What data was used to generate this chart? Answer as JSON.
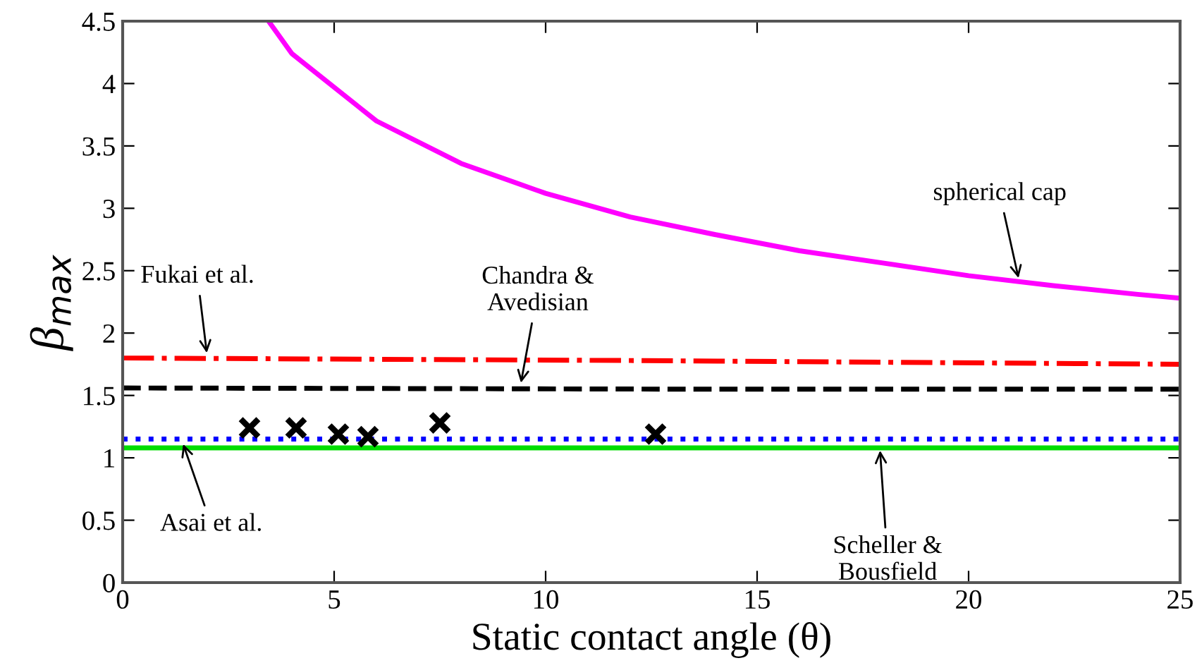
{
  "chart_data": {
    "type": "line",
    "xlabel": "Static contact angle (θ)",
    "ylabel": "β$_{max}$",
    "xlim": [
      0,
      25
    ],
    "ylim": [
      0,
      4.5
    ],
    "xticks": [
      0,
      5,
      10,
      15,
      20,
      25
    ],
    "yticks": [
      0,
      0.5,
      1,
      1.5,
      2,
      2.5,
      3,
      3.5,
      4,
      4.5
    ],
    "grid": false,
    "legend": false,
    "series": [
      {
        "color": "#ff00ff",
        "line_style": "solid",
        "marker": "none",
        "x": [
          3.45,
          4,
          6,
          8,
          10,
          12,
          14,
          16,
          18,
          20,
          22,
          24,
          25
        ],
        "values": [
          4.5,
          4.24,
          3.7,
          3.36,
          3.12,
          2.93,
          2.79,
          2.66,
          2.56,
          2.46,
          2.38,
          2.31,
          2.28
        ]
      },
      {
        "color": "#ff0000",
        "line_style": "dashdot",
        "marker": "none",
        "x": [
          0,
          12,
          25
        ],
        "values": [
          1.8,
          1.78,
          1.75
        ]
      },
      {
        "color": "#000000",
        "line_style": "dashed",
        "marker": "none",
        "x": [
          0,
          14,
          25
        ],
        "values": [
          1.56,
          1.55,
          1.55
        ]
      },
      {
        "color": "#0000ff",
        "line_style": "dotted",
        "marker": "none",
        "x": [
          0,
          25
        ],
        "values": [
          1.15,
          1.15
        ]
      },
      {
        "color": "#00dd00",
        "line_style": "solid",
        "marker": "none",
        "x": [
          0,
          25
        ],
        "values": [
          1.08,
          1.08
        ]
      },
      {
        "type": "scatter",
        "color": "#000000",
        "marker": "cross",
        "x": [
          3,
          4.1,
          5.1,
          5.8,
          7.5,
          12.6
        ],
        "values": [
          1.24,
          1.24,
          1.19,
          1.17,
          1.28,
          1.19
        ]
      }
    ],
    "annotations": [
      {
        "text": "Fukai et al.",
        "x": 2,
        "y": 1.81
      },
      {
        "text": "Chandra &\nAvedisian",
        "x": 9.4,
        "y": 1.57
      },
      {
        "text": "Asai et al.",
        "x": 1.4,
        "y": 1.14
      },
      {
        "text": "Scheller &\nBousfield",
        "x": 17.9,
        "y": 1.09
      },
      {
        "text": "spherical cap",
        "x": 21.2,
        "y": 2.41
      }
    ]
  }
}
